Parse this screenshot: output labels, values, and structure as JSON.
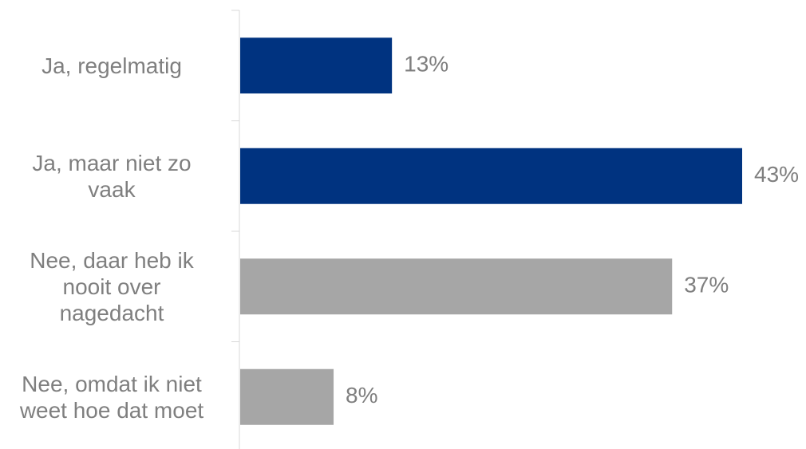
{
  "chart_data": {
    "type": "bar",
    "orientation": "horizontal",
    "categories": [
      "Ja, regelmatig",
      "Ja, maar niet zo\nvaak",
      "Nee, daar heb ik\nnooit over\nnagedacht",
      "Nee, omdat ik niet\nweet hoe dat moet"
    ],
    "values": [
      13,
      43,
      37,
      8
    ],
    "value_labels": [
      "13%",
      "43%",
      "37%",
      "8%"
    ],
    "bar_colors": [
      "#003380",
      "#003380",
      "#a6a6a6",
      "#a6a6a6"
    ],
    "xlim": [
      0,
      43
    ],
    "grid": false,
    "legend": "none"
  },
  "colors": {
    "label_text": "#7f7f7f",
    "axis_line": "#d9d9d9"
  }
}
